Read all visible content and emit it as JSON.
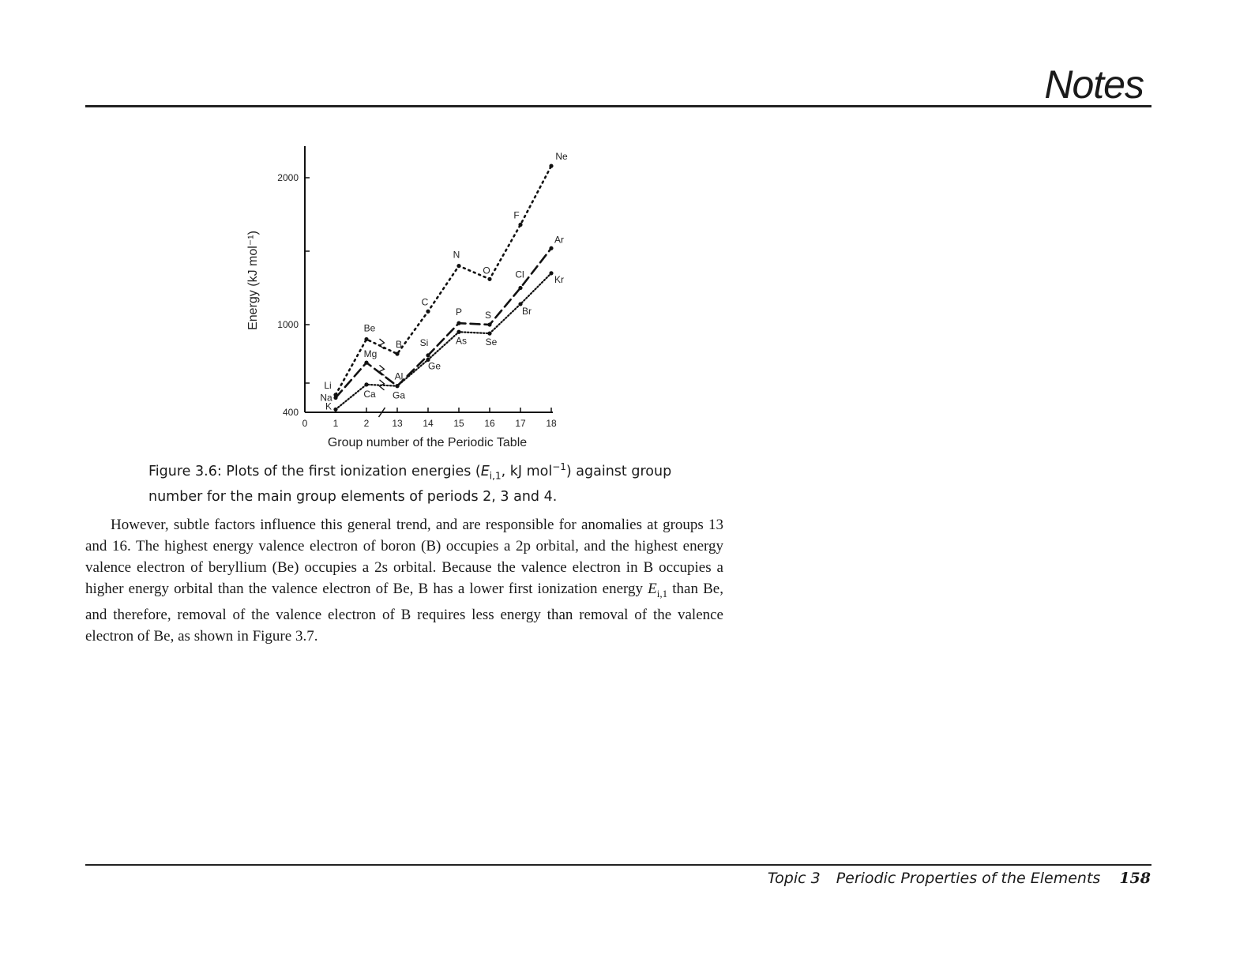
{
  "header": {
    "title": "Notes"
  },
  "chart_data": {
    "type": "line",
    "xlabel": "Group number of the Periodic Table",
    "ylabel": "Energy (kJ mol⁻¹)",
    "xtick_labels": [
      "0",
      "1",
      "2",
      "13",
      "14",
      "15",
      "16",
      "17",
      "18"
    ],
    "yticks": [
      400,
      1000,
      2000
    ],
    "ylim": [
      400,
      2200
    ],
    "axis_break": "between groups 2 and 13",
    "series": [
      {
        "style": "dotted",
        "groups": [
          "1",
          "2",
          "13",
          "14",
          "15",
          "16",
          "17",
          "18"
        ],
        "elements": [
          "Li",
          "Be",
          "B",
          "C",
          "N",
          "O",
          "F",
          "Ne"
        ],
        "values": [
          520,
          900,
          800,
          1090,
          1400,
          1310,
          1680,
          2080
        ]
      },
      {
        "style": "dashed",
        "groups": [
          "1",
          "2",
          "13",
          "14",
          "15",
          "16",
          "17",
          "18"
        ],
        "elements": [
          "Na",
          "Mg",
          "Al",
          "Si",
          "P",
          "S",
          "Cl",
          "Ar"
        ],
        "values": [
          500,
          740,
          580,
          790,
          1010,
          1000,
          1250,
          1520
        ]
      },
      {
        "style": "dense-dotted",
        "groups": [
          "1",
          "2",
          "13",
          "14",
          "15",
          "16",
          "17",
          "18"
        ],
        "elements": [
          "K",
          "Ca",
          "Ga",
          "Ge",
          "As",
          "Se",
          "Br",
          "Kr"
        ],
        "values": [
          420,
          590,
          580,
          760,
          950,
          940,
          1140,
          1350
        ]
      }
    ]
  },
  "caption": {
    "prefix": "Figure 3.6:",
    "text_before": "Plots of the first ionization energies (",
    "E": "E",
    "sub": "i,1",
    "unit": ", kJ mol",
    "sup": "−1",
    "text_after": ") against group number for the main group elements of periods 2, 3 and 4."
  },
  "body": {
    "p1": "However, subtle factors influence this general trend, and are responsible for anomalies at groups 13 and 16. The highest energy valence electron of boron (B) occupies a 2p orbital, and the highest energy valence electron of beryllium (Be) occupies a 2s orbital. Because the valence electron in B occupies a higher energy orbital than the valence electron of Be, B has a lower first ionization energy ",
    "E": "E",
    "sub": "i,1",
    "p1_end": " than Be, and therefore, removal of the valence electron of B requires less energy than removal of the valence electron of Be, as shown in Figure 3.7."
  },
  "footer": {
    "topic": "Topic 3",
    "title": "Periodic Properties of the Elements",
    "page": "158"
  }
}
